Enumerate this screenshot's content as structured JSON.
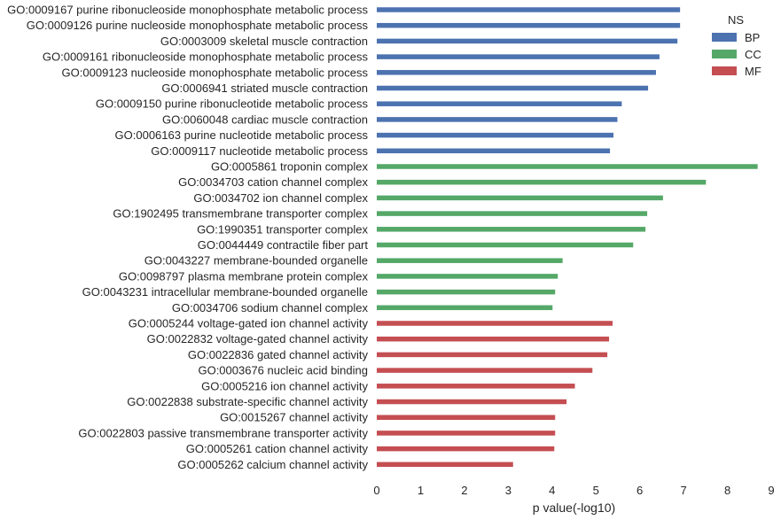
{
  "chart_data": {
    "type": "bar",
    "orientation": "horizontal",
    "title": "",
    "xlabel": "p value(-log10)",
    "ylabel": "",
    "xlim": [
      0,
      9
    ],
    "xticks": [
      0,
      1,
      2,
      3,
      4,
      5,
      6,
      7,
      8,
      9
    ],
    "grid": false,
    "legend": {
      "title": "NS",
      "placement": "top-right",
      "entries": [
        {
          "name": "BP",
          "color": "#4c72b0"
        },
        {
          "name": "CC",
          "color": "#55a868"
        },
        {
          "name": "MF",
          "color": "#c44e52"
        }
      ]
    },
    "bars": [
      {
        "label": "GO:0009167 purine ribonucleoside monophosphate metabolic process",
        "value": 6.92,
        "ns": "BP"
      },
      {
        "label": "GO:0009126 purine nucleoside monophosphate metabolic process",
        "value": 6.92,
        "ns": "BP"
      },
      {
        "label": "GO:0003009 skeletal muscle contraction",
        "value": 6.86,
        "ns": "BP"
      },
      {
        "label": "GO:0009161 ribonucleoside monophosphate metabolic process",
        "value": 6.45,
        "ns": "BP"
      },
      {
        "label": "GO:0009123 nucleoside monophosphate metabolic process",
        "value": 6.37,
        "ns": "BP"
      },
      {
        "label": "GO:0006941 striated muscle contraction",
        "value": 6.19,
        "ns": "BP"
      },
      {
        "label": "GO:0009150 purine ribonucleotide metabolic process",
        "value": 5.59,
        "ns": "BP"
      },
      {
        "label": "GO:0060048 cardiac muscle contraction",
        "value": 5.49,
        "ns": "BP"
      },
      {
        "label": "GO:0006163 purine nucleotide metabolic process",
        "value": 5.4,
        "ns": "BP"
      },
      {
        "label": "GO:0009117 nucleotide metabolic process",
        "value": 5.32,
        "ns": "BP"
      },
      {
        "label": "GO:0005861 troponin complex",
        "value": 8.69,
        "ns": "CC"
      },
      {
        "label": "GO:0034703 cation channel complex",
        "value": 7.51,
        "ns": "CC"
      },
      {
        "label": "GO:0034702 ion channel complex",
        "value": 6.53,
        "ns": "CC"
      },
      {
        "label": "GO:1902495 transmembrane transporter complex",
        "value": 6.17,
        "ns": "CC"
      },
      {
        "label": "GO:1990351 transporter complex",
        "value": 6.13,
        "ns": "CC"
      },
      {
        "label": "GO:0044449 contractile fiber part",
        "value": 5.85,
        "ns": "CC"
      },
      {
        "label": "GO:0043227 membrane-bounded organelle",
        "value": 4.24,
        "ns": "CC"
      },
      {
        "label": "GO:0098797 plasma membrane protein complex",
        "value": 4.13,
        "ns": "CC"
      },
      {
        "label": "GO:0043231 intracellular membrane-bounded organelle",
        "value": 4.07,
        "ns": "CC"
      },
      {
        "label": "GO:0034706 sodium channel complex",
        "value": 4.01,
        "ns": "CC"
      },
      {
        "label": "GO:0005244 voltage-gated ion channel activity",
        "value": 5.38,
        "ns": "MF"
      },
      {
        "label": "GO:0022832 voltage-gated channel activity",
        "value": 5.3,
        "ns": "MF"
      },
      {
        "label": "GO:0022836 gated channel activity",
        "value": 5.26,
        "ns": "MF"
      },
      {
        "label": "GO:0003676 nucleic acid binding",
        "value": 4.92,
        "ns": "MF"
      },
      {
        "label": "GO:0005216 ion channel activity",
        "value": 4.52,
        "ns": "MF"
      },
      {
        "label": "GO:0022838 substrate-specific channel activity",
        "value": 4.33,
        "ns": "MF"
      },
      {
        "label": "GO:0015267 channel activity",
        "value": 4.07,
        "ns": "MF"
      },
      {
        "label": "GO:0022803 passive transmembrane transporter activity",
        "value": 4.07,
        "ns": "MF"
      },
      {
        "label": "GO:0005261 cation channel activity",
        "value": 4.05,
        "ns": "MF"
      },
      {
        "label": "GO:0005262 calcium channel activity",
        "value": 3.11,
        "ns": "MF"
      }
    ]
  }
}
